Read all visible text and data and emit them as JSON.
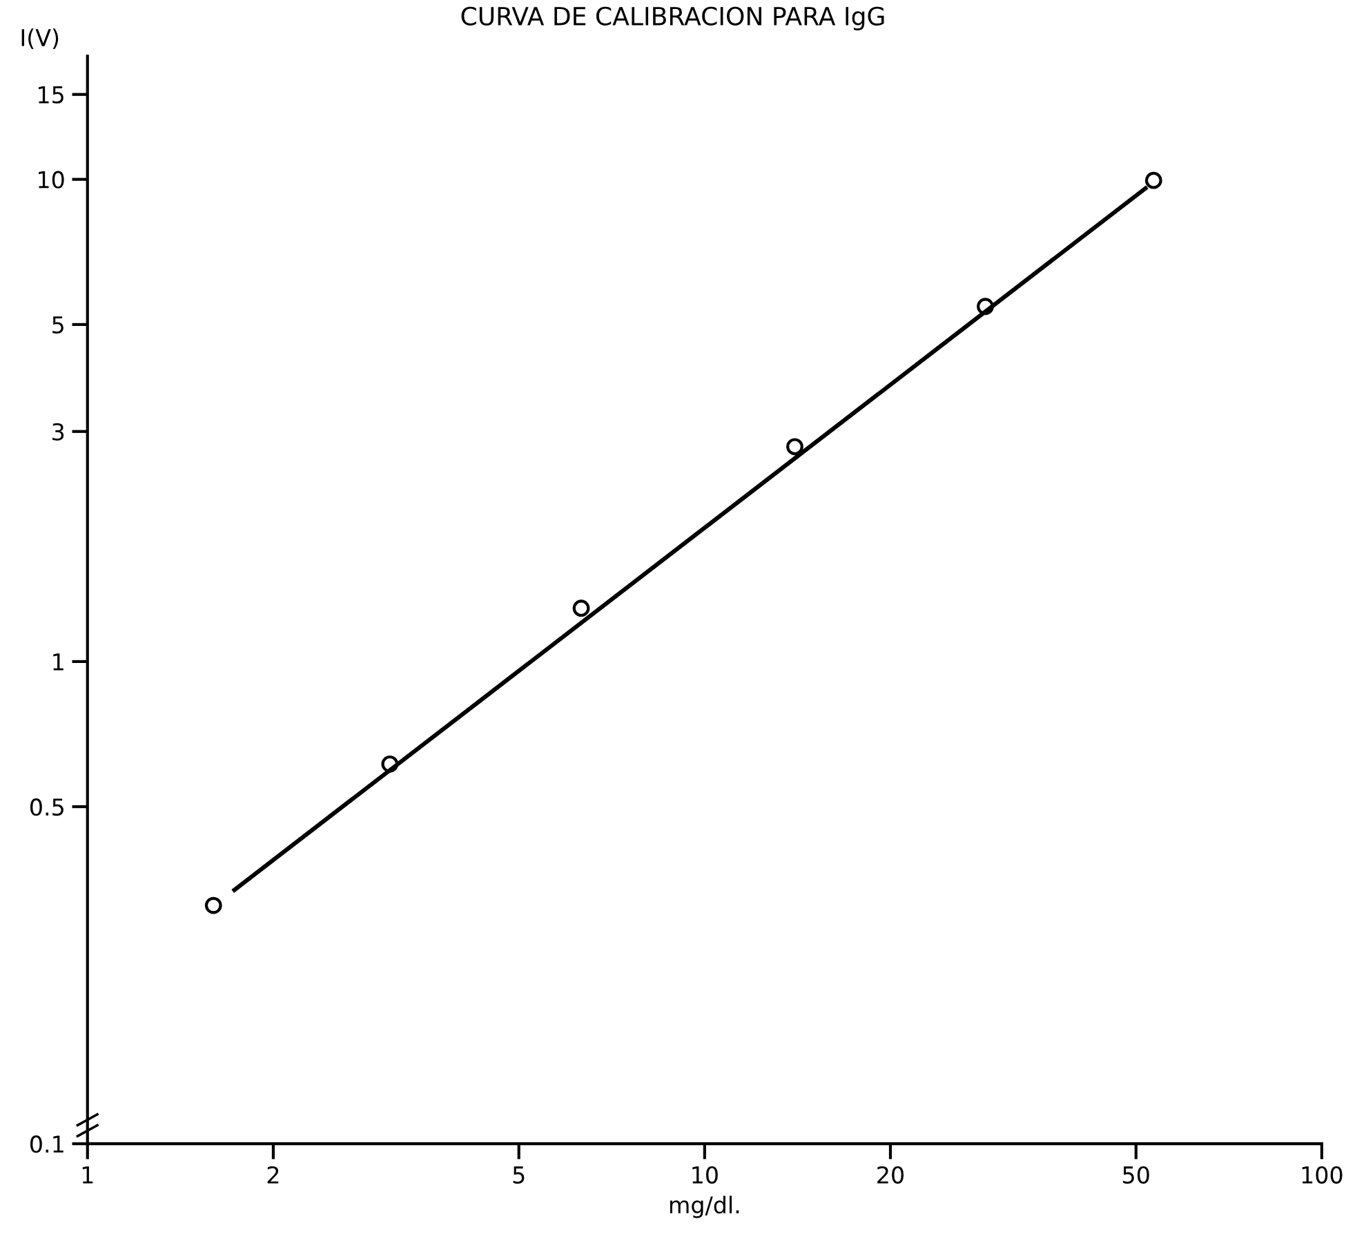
{
  "chart_data": {
    "type": "scatter",
    "title": "CURVA DE CALIBRACION PARA IgG",
    "xlabel": "mg/dl.",
    "ylabel": "I(V)",
    "log": "xy",
    "grid": false,
    "legend": false,
    "series": [
      {
        "color": "#000000",
        "marker": "circle",
        "x": [
          1.6,
          3.09,
          6.31,
          14.0,
          28.5,
          53.4
        ],
        "values": [
          0.312,
          0.613,
          1.29,
          2.79,
          5.45,
          9.95
        ]
      },
      {
        "type": "line",
        "color": "#000000",
        "marker": "none",
        "line_style": "solid",
        "x": [
          1.73,
          51.8
        ],
        "values": [
          0.336,
          9.58
        ]
      }
    ],
    "xlim": [
      1,
      100
    ],
    "xticks": [
      1,
      2,
      5,
      10,
      20,
      50,
      100
    ],
    "ylim": [
      0.1,
      18
    ],
    "yticks": [
      0.1,
      {
        "value": 0.5,
        "label": "0.5"
      },
      1,
      3,
      5,
      10,
      15
    ]
  }
}
